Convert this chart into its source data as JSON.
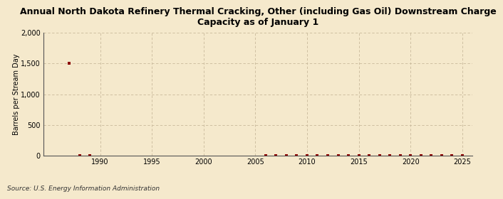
{
  "title": "Annual North Dakota Refinery Thermal Cracking, Other (including Gas Oil) Downstream Charge\nCapacity as of January 1",
  "ylabel": "Barrels per Stream Day",
  "source": "Source: U.S. Energy Information Administration",
  "background_color": "#f5e9cc",
  "plot_background_color": "#f5e9cc",
  "line_color": "#8b0000",
  "marker_color": "#8b0000",
  "grid_color": "#c8b89a",
  "xlim": [
    1984.5,
    2026
  ],
  "ylim": [
    0,
    2000
  ],
  "yticks": [
    0,
    500,
    1000,
    1500,
    2000
  ],
  "xticks": [
    1990,
    1995,
    2000,
    2005,
    2010,
    2015,
    2020,
    2025
  ],
  "data_x": [
    1987,
    1988,
    1989,
    2006,
    2007,
    2008,
    2009,
    2010,
    2011,
    2012,
    2013,
    2014,
    2015,
    2016,
    2017,
    2018,
    2019,
    2020,
    2021,
    2022,
    2023,
    2024,
    2025
  ],
  "data_y": [
    1500,
    0,
    0,
    0,
    0,
    0,
    0,
    0,
    0,
    0,
    0,
    0,
    0,
    0,
    0,
    0,
    0,
    0,
    0,
    0,
    0,
    0,
    0
  ]
}
